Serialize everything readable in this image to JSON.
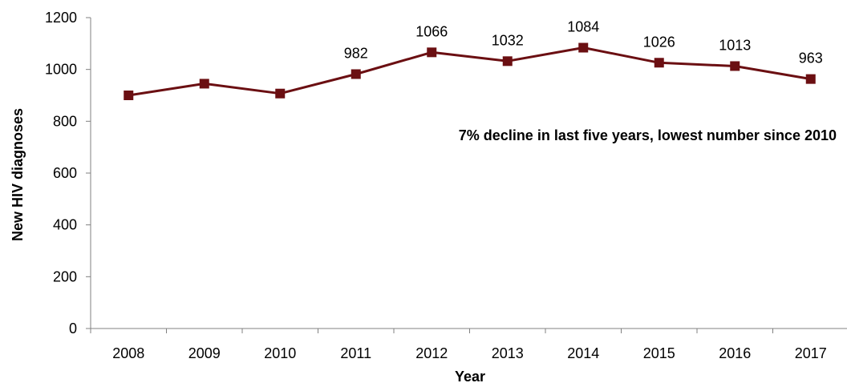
{
  "chart_data": {
    "type": "line",
    "x": [
      "2008",
      "2009",
      "2010",
      "2011",
      "2012",
      "2013",
      "2014",
      "2015",
      "2016",
      "2017"
    ],
    "series": [
      {
        "values": [
          900,
          945,
          907,
          982,
          1066,
          1032,
          1084,
          1026,
          1013,
          963
        ],
        "data_labels": [
          "",
          "",
          "",
          "982",
          "1066",
          "1032",
          "1084",
          "1026",
          "1013",
          "963"
        ],
        "color": "#6B0F12",
        "marker": "square"
      }
    ],
    "xlabel": "Year",
    "ylabel": "New HIV diagnoses",
    "ylim": [
      0,
      1200
    ],
    "yticks": [
      "0",
      "200",
      "400",
      "600",
      "800",
      "1000",
      "1200"
    ],
    "grid": false,
    "legend": "none",
    "annotation": "7% decline in last five years, lowest number since 2010"
  }
}
